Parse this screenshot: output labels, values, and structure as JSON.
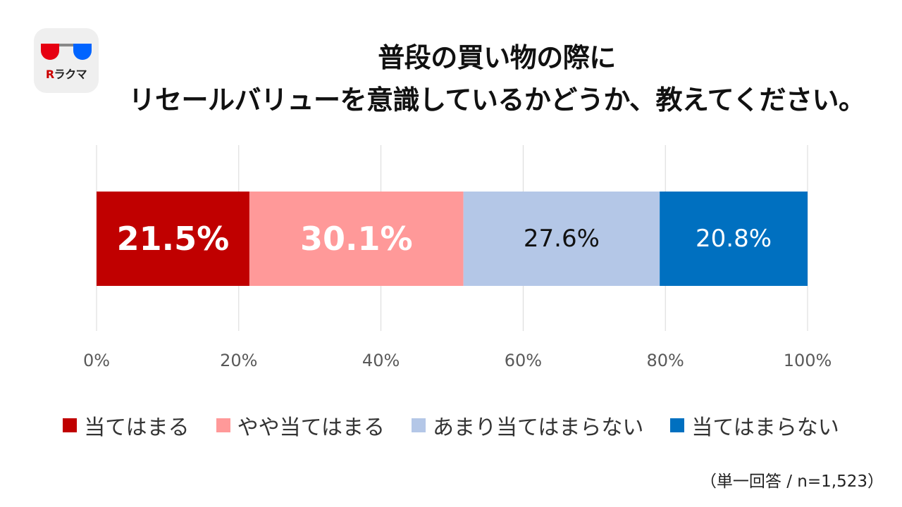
{
  "logo": {
    "brand_mark": "R",
    "brand_text": "ラクマ",
    "colors": {
      "left_lens": "#e60012",
      "right_lens": "#0064ff"
    }
  },
  "chart_data": {
    "type": "bar",
    "orientation": "horizontal",
    "stacked": true,
    "title_lines": [
      "普段の買い物の際に",
      "リセールバリューを意識しているかどうか、教えてください。"
    ],
    "xlim": [
      0,
      100
    ],
    "x_ticks": [
      "0%",
      "20%",
      "40%",
      "60%",
      "80%",
      "100%"
    ],
    "grid": true,
    "legend_position": "bottom",
    "series": [
      {
        "name": "当てはまる",
        "value": 21.5,
        "label": "21.5%",
        "color": "#c00000",
        "label_color": "#ffffff",
        "label_bold": true
      },
      {
        "name": "やや当てはまる",
        "value": 30.1,
        "label": "30.1%",
        "color": "#ff9999",
        "label_color": "#ffffff",
        "label_bold": true
      },
      {
        "name": "あまり当てはまらない",
        "value": 27.6,
        "label": "27.6%",
        "color": "#b4c7e7",
        "label_color": "#111111",
        "label_bold": false
      },
      {
        "name": "当てはまらない",
        "value": 20.8,
        "label": "20.8%",
        "color": "#0070c0",
        "label_color": "#ffffff",
        "label_bold": false
      }
    ]
  },
  "note": "（単一回答 / n=1,523）"
}
